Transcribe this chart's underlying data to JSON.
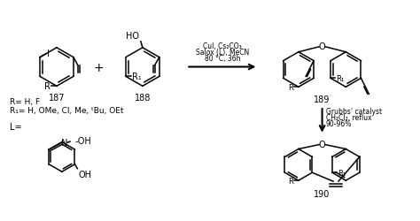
{
  "background_color": "#ffffff",
  "text_color": "#000000",
  "fig_width": 4.74,
  "fig_height": 2.51,
  "dpi": 100,
  "reaction1_conditions": [
    "CuI, Cs₂CO₃",
    "Salox (L), MeCN",
    "80 °C, 36h"
  ],
  "reaction2_conditions": [
    "Grubbs’ catalyst",
    "CH₂Cl₂, reflux",
    "90-96%"
  ],
  "substituents_line1": "R= H, F",
  "substituents_line2": "R₁= H, OMe, Cl, Me, ᵗBu, OEt",
  "ligand_label": "L=",
  "compound_labels": [
    "187",
    "188",
    "189",
    "190"
  ]
}
